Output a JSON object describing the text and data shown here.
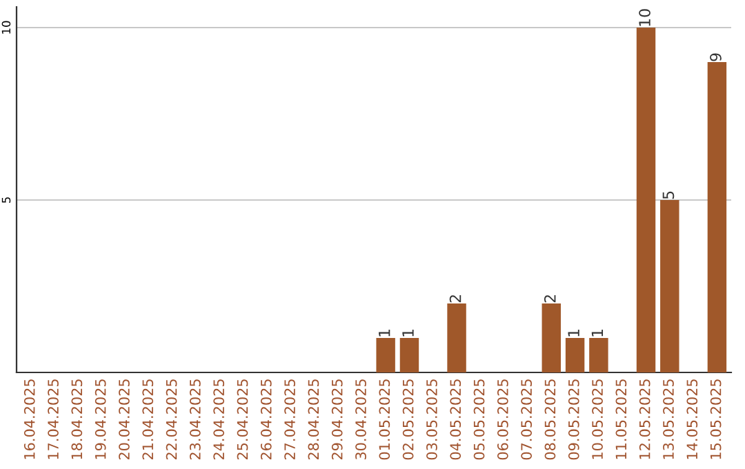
{
  "chart_data": {
    "type": "bar",
    "categories": [
      "16.04.2025",
      "17.04.2025",
      "18.04.2025",
      "19.04.2025",
      "20.04.2025",
      "21.04.2025",
      "22.04.2025",
      "23.04.2025",
      "24.04.2025",
      "25.04.2025",
      "26.04.2025",
      "27.04.2025",
      "28.04.2025",
      "29.04.2025",
      "30.04.2025",
      "01.05.2025",
      "02.05.2025",
      "03.05.2025",
      "04.05.2025",
      "05.05.2025",
      "06.05.2025",
      "07.05.2025",
      "08.05.2025",
      "09.05.2025",
      "10.05.2025",
      "11.05.2025",
      "12.05.2025",
      "13.05.2025",
      "14.05.2025",
      "15.05.2025"
    ],
    "values": [
      0,
      0,
      0,
      0,
      0,
      0,
      0,
      0,
      0,
      0,
      0,
      0,
      0,
      0,
      0,
      1,
      1,
      0,
      2,
      0,
      0,
      0,
      2,
      1,
      1,
      0,
      10,
      5,
      0,
      9
    ],
    "value_labels": [
      null,
      null,
      null,
      null,
      null,
      null,
      null,
      null,
      null,
      null,
      null,
      null,
      null,
      null,
      null,
      "1",
      "1",
      null,
      "2",
      null,
      null,
      null,
      "2",
      "1",
      "1",
      null,
      "10",
      "5",
      null,
      "9"
    ],
    "color": "#a0582a",
    "ylim": [
      0,
      10.6
    ],
    "yticks": [
      5,
      10
    ],
    "grid": "y"
  }
}
